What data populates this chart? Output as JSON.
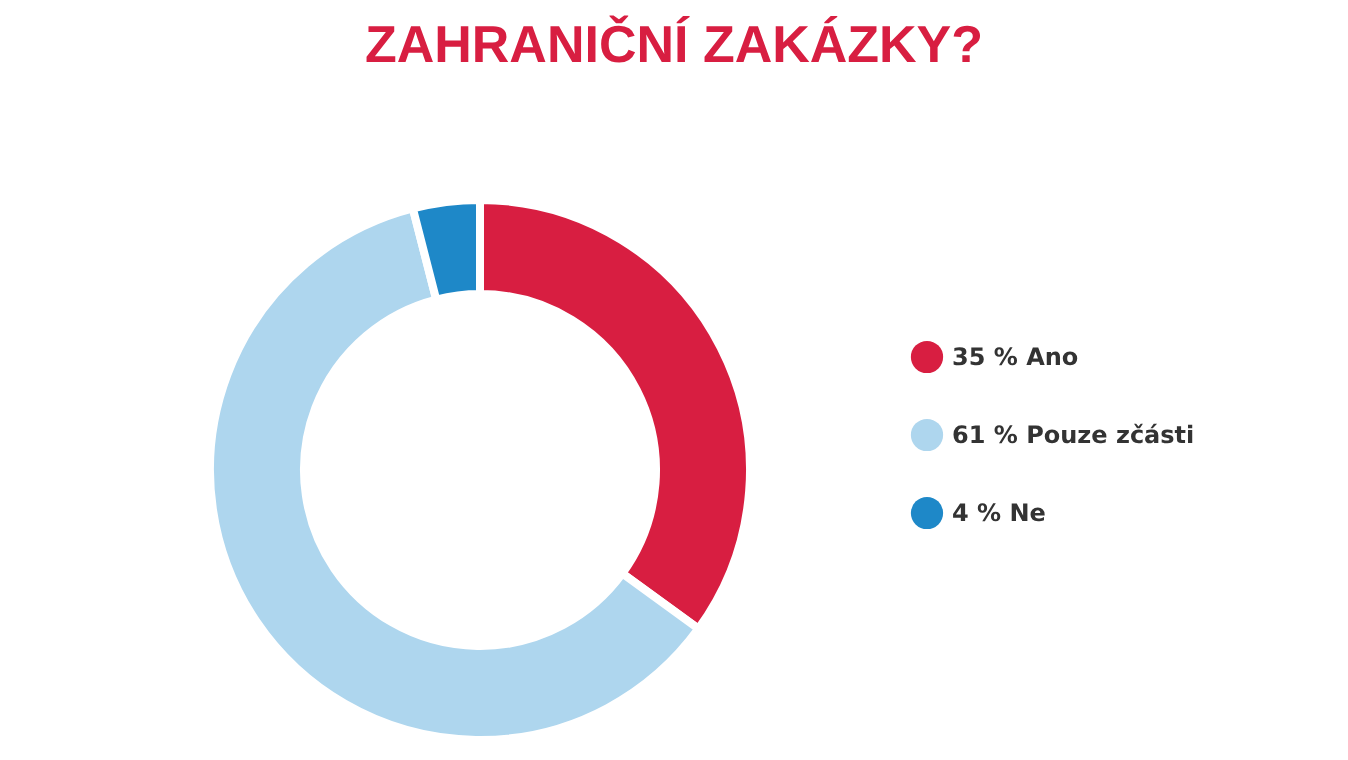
{
  "chart_data": {
    "type": "donut",
    "title": "ZAHRANIČNÍ ZAKÁZKY?",
    "categories": [
      "35 % Ano",
      "61 % Pouze zčásti",
      "4 % Ne"
    ],
    "values": [
      35,
      61,
      4
    ],
    "colors": [
      "#d81e41",
      "#aed6ee",
      "#1e88c8"
    ],
    "legend": "right"
  }
}
